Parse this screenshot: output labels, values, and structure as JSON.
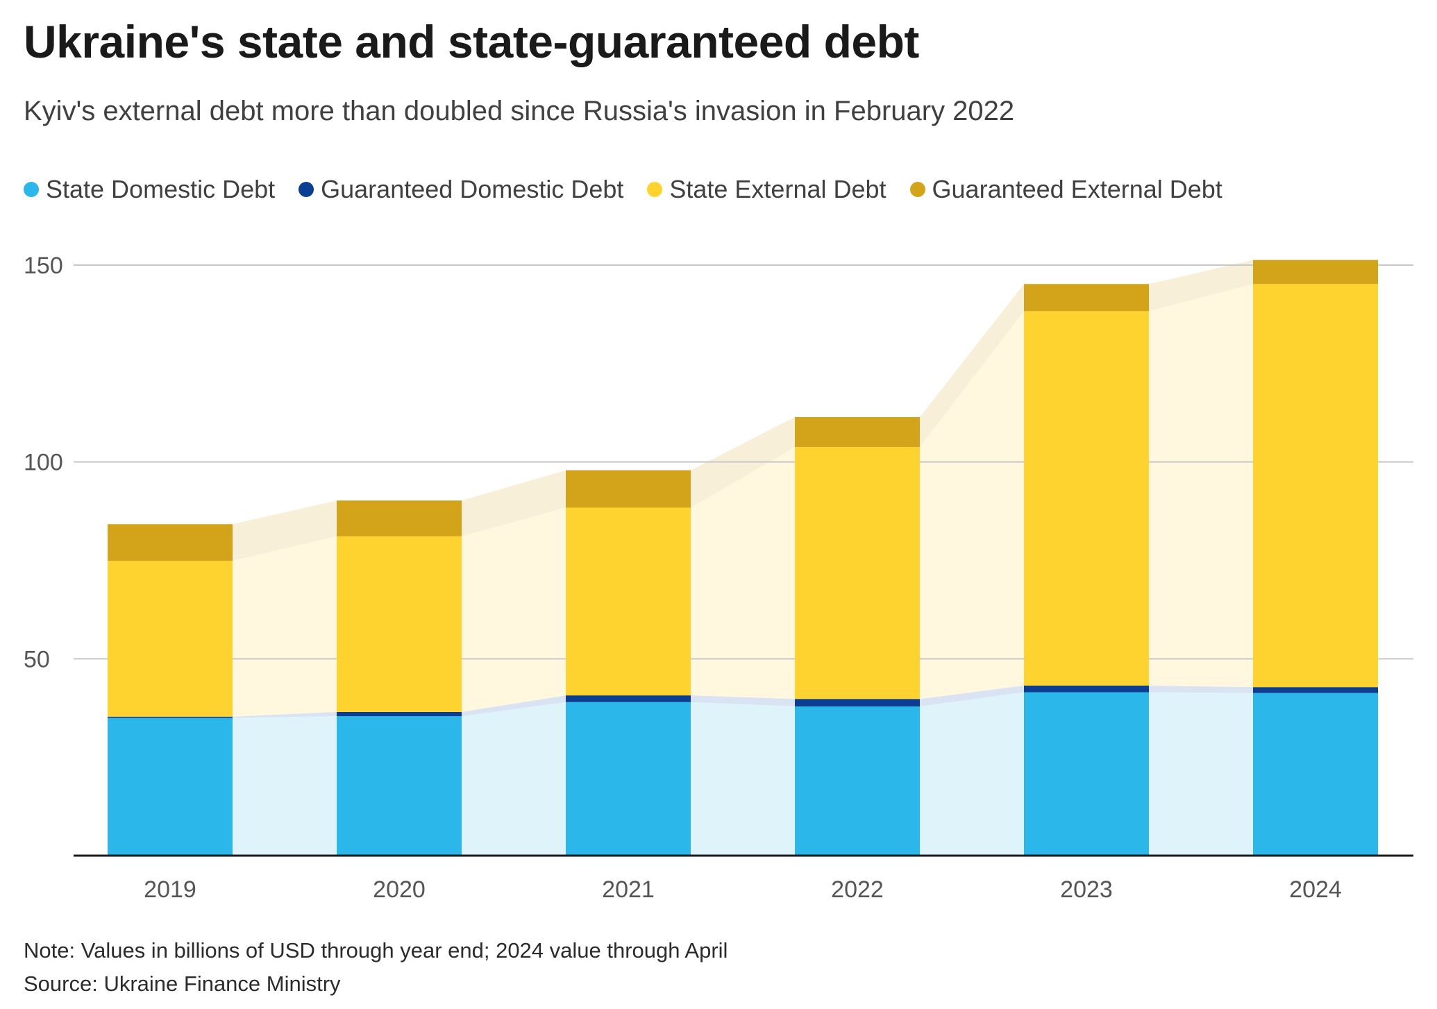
{
  "header": {
    "title": "Ukraine's state and state-guaranteed debt",
    "subtitle": "Kyiv's external debt more than doubled since Russia's invasion in February 2022"
  },
  "footer": {
    "note": "Note: Values in billions of USD through year end; 2024 value through April",
    "source": "Source: Ukraine Finance Ministry"
  },
  "colors": {
    "state_domestic": "#2bb7ea",
    "guaranteed_domestic": "#0b3d91",
    "state_external": "#fed330",
    "guaranteed_external": "#d3a31a",
    "gridline": "#c8c8c8",
    "axis": "#1a1a1a",
    "tick_text": "#555555"
  },
  "chart_data": {
    "type": "bar",
    "stacked": true,
    "categories": [
      "2019",
      "2020",
      "2021",
      "2022",
      "2023",
      "2024"
    ],
    "series": [
      {
        "name": "State Domestic Debt",
        "color_key": "state_domestic",
        "values": [
          35.0,
          35.4,
          39.0,
          37.9,
          41.5,
          41.3
        ]
      },
      {
        "name": "Guaranteed Domestic Debt",
        "color_key": "guaranteed_domestic",
        "values": [
          0.3,
          1.1,
          1.7,
          1.9,
          1.7,
          1.5
        ]
      },
      {
        "name": "State External Debt",
        "color_key": "state_external",
        "values": [
          39.6,
          44.6,
          47.7,
          64.0,
          95.1,
          102.4
        ]
      },
      {
        "name": "Guaranteed External Debt",
        "color_key": "guaranteed_external",
        "values": [
          9.3,
          9.1,
          9.5,
          7.6,
          6.9,
          6.1
        ]
      }
    ],
    "ylim": [
      0,
      150
    ],
    "yticks": [
      50,
      100,
      150
    ],
    "grid": true,
    "legend_position": "top-left",
    "xlabel": "",
    "ylabel": ""
  }
}
